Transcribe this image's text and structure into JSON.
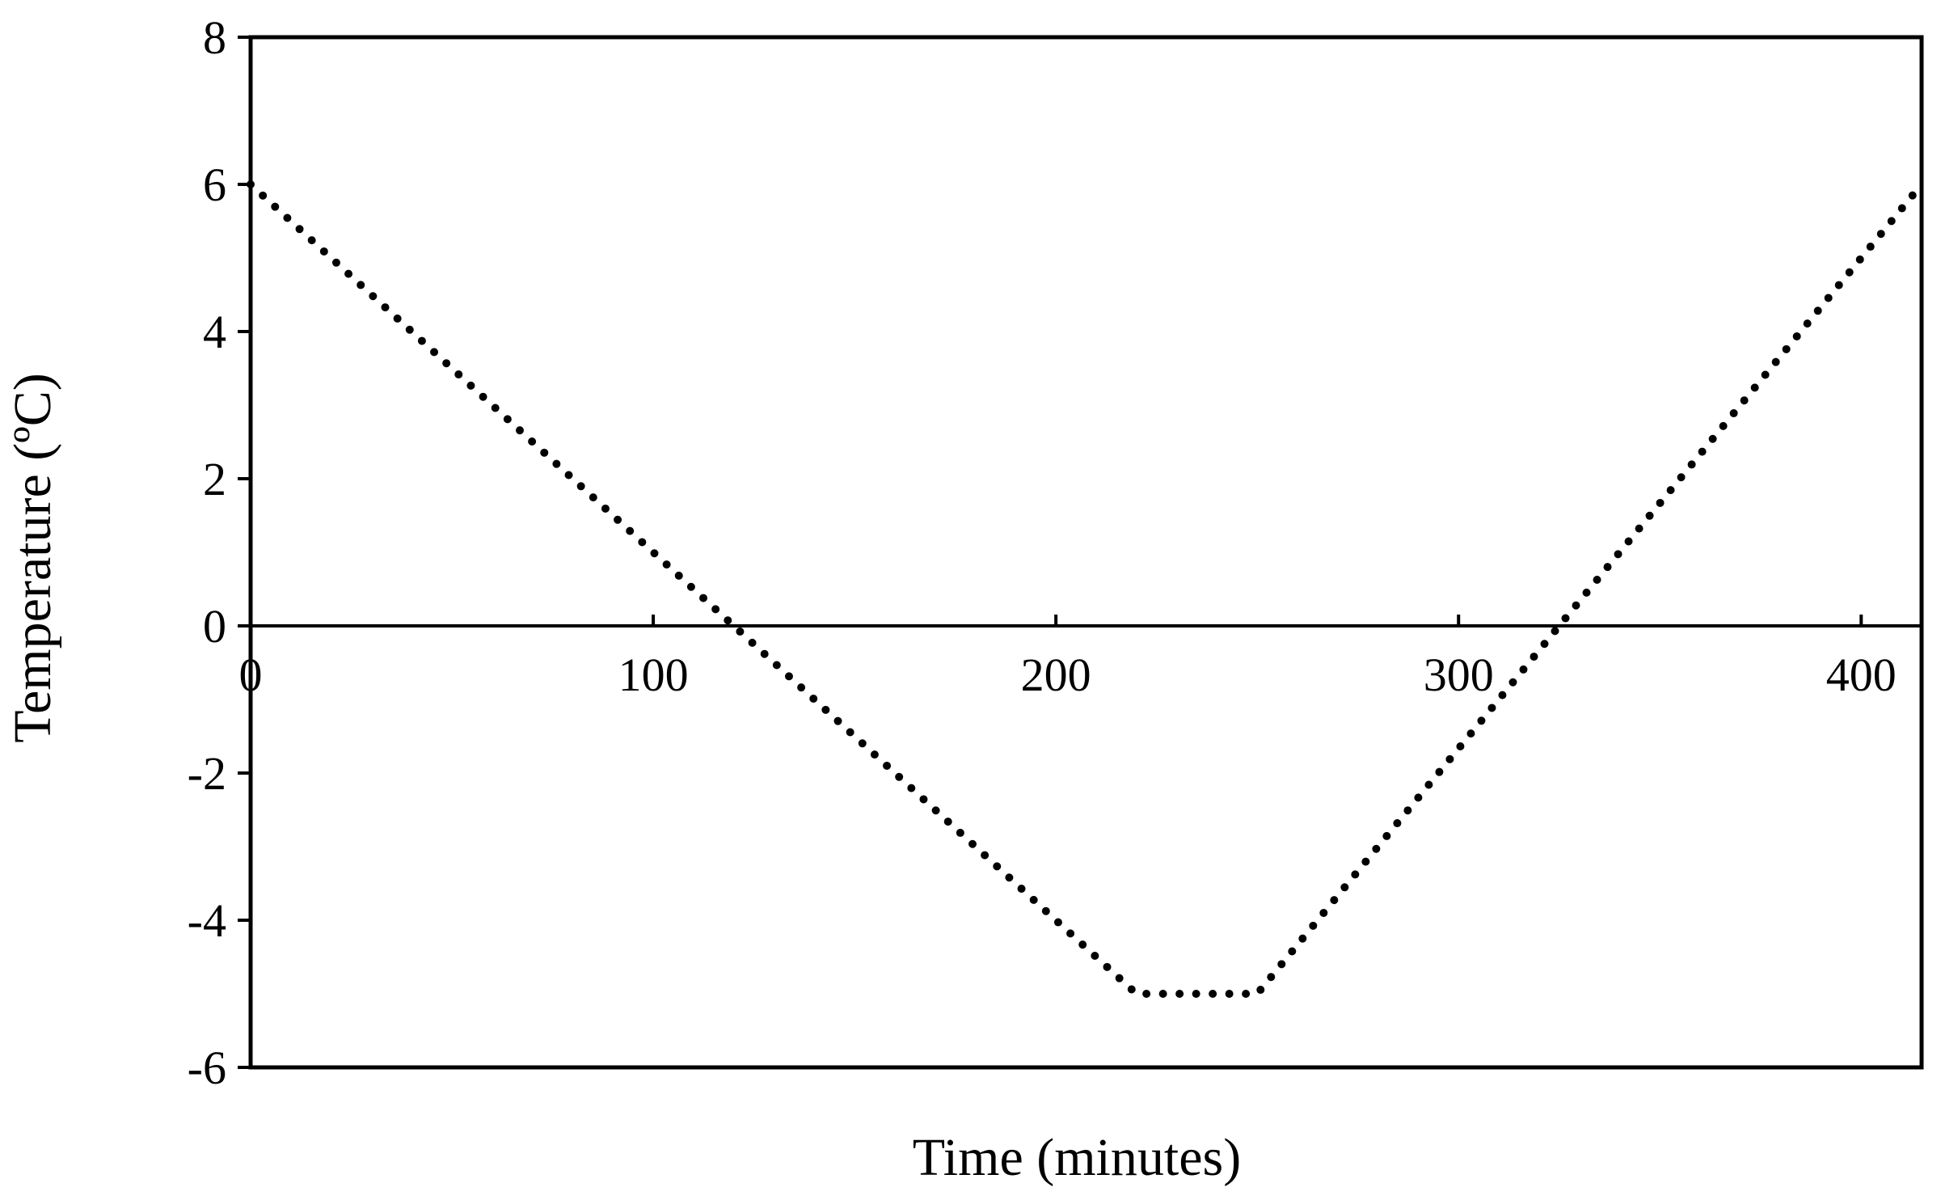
{
  "chart_data": {
    "type": "line",
    "title": "",
    "xlabel": "Time (minutes)",
    "ylabel": "Temperature (ºC)",
    "xlim": [
      0,
      415
    ],
    "ylim": [
      -6,
      8
    ],
    "xticks": [
      0,
      100,
      200,
      300,
      400
    ],
    "yticks": [
      -6,
      -4,
      -2,
      0,
      2,
      4,
      6,
      8
    ],
    "xtick_labels": [
      "0",
      "100",
      "200",
      "300",
      "400"
    ],
    "ytick_labels": [
      "-6",
      "-4",
      "-2",
      "0",
      "2",
      "4",
      "6",
      "8"
    ],
    "grid": false,
    "legend": "none",
    "line_style": "dotted",
    "line_color": "#000000",
    "series": [
      {
        "x": [
          0,
          220,
          250,
          415
        ],
        "y": [
          6,
          -5,
          -5,
          6
        ]
      }
    ]
  }
}
